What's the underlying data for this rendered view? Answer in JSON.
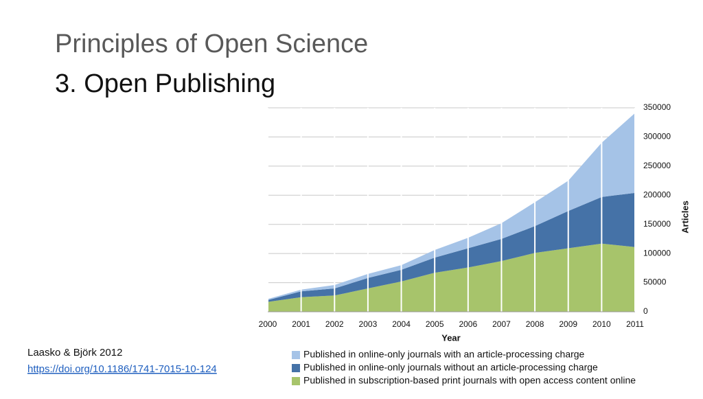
{
  "slide_title": "Principles of Open Science",
  "slide_subtitle": "3. Open Publishing",
  "citation": "Laasko & Björk 2012",
  "link": "https://doi.org/10.1186/1741-7015-10-124",
  "chart_data": {
    "type": "stacked_area",
    "x_label": "Year",
    "y_label": "Articles",
    "x": [
      2000,
      2001,
      2002,
      2003,
      2004,
      2005,
      2006,
      2007,
      2008,
      2009,
      2010,
      2011
    ],
    "xlim": [
      2000,
      2011
    ],
    "xticks": [
      2000,
      2001,
      2002,
      2003,
      2004,
      2005,
      2006,
      2007,
      2008,
      2009,
      2010,
      2011
    ],
    "ylim": [
      0,
      350000
    ],
    "yticks": [
      0,
      50000,
      100000,
      150000,
      200000,
      250000,
      300000,
      350000
    ],
    "grid": true,
    "series": [
      {
        "name": "Published in online-only journals with an article-processing charge",
        "color": "#a5c3e7",
        "values": [
          2000,
          3000,
          6000,
          7000,
          8000,
          13000,
          18000,
          27000,
          41000,
          52000,
          93000,
          137000
        ]
      },
      {
        "name": "Published in online-only journals without an article-processing charge",
        "color": "#4572a7",
        "values": [
          3000,
          10000,
          12000,
          18000,
          20000,
          26000,
          33000,
          38000,
          46000,
          64000,
          80000,
          93000
        ]
      },
      {
        "name": "Published in subscription-based print journals with open access content online",
        "color": "#a7c46b",
        "values": [
          17000,
          25000,
          28000,
          40000,
          52000,
          67000,
          76000,
          87000,
          101000,
          109000,
          117000,
          111000
        ]
      }
    ]
  }
}
